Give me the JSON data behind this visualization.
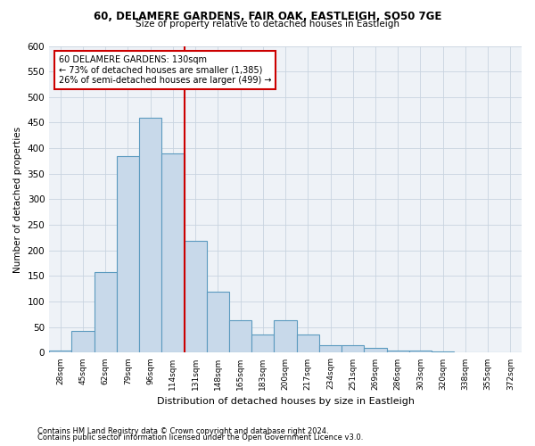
{
  "title1": "60, DELAMERE GARDENS, FAIR OAK, EASTLEIGH, SO50 7GE",
  "title2": "Size of property relative to detached houses in Eastleigh",
  "xlabel": "Distribution of detached houses by size in Eastleigh",
  "ylabel": "Number of detached properties",
  "footnote1": "Contains HM Land Registry data © Crown copyright and database right 2024.",
  "footnote2": "Contains public sector information licensed under the Open Government Licence v3.0.",
  "bar_color": "#c8d9ea",
  "bar_edge_color": "#5b9abf",
  "grid_color": "#c8d4e0",
  "bg_color": "#eef2f7",
  "vline_color": "#cc0000",
  "annotation_box_color": "#cc0000",
  "categories": [
    "28sqm",
    "45sqm",
    "62sqm",
    "79sqm",
    "96sqm",
    "114sqm",
    "131sqm",
    "148sqm",
    "165sqm",
    "183sqm",
    "200sqm",
    "217sqm",
    "234sqm",
    "251sqm",
    "269sqm",
    "286sqm",
    "303sqm",
    "320sqm",
    "338sqm",
    "355sqm",
    "372sqm"
  ],
  "values": [
    5,
    42,
    158,
    385,
    460,
    390,
    218,
    120,
    63,
    35,
    63,
    35,
    15,
    15,
    10,
    5,
    5,
    2,
    1,
    1,
    1
  ],
  "vline_x": 6,
  "annotation_line1": "60 DELAMERE GARDENS: 130sqm",
  "annotation_line2": "← 73% of detached houses are smaller (1,385)",
  "annotation_line3": "26% of semi-detached houses are larger (499) →",
  "ylim": [
    0,
    600
  ],
  "yticks": [
    0,
    50,
    100,
    150,
    200,
    250,
    300,
    350,
    400,
    450,
    500,
    550,
    600
  ]
}
